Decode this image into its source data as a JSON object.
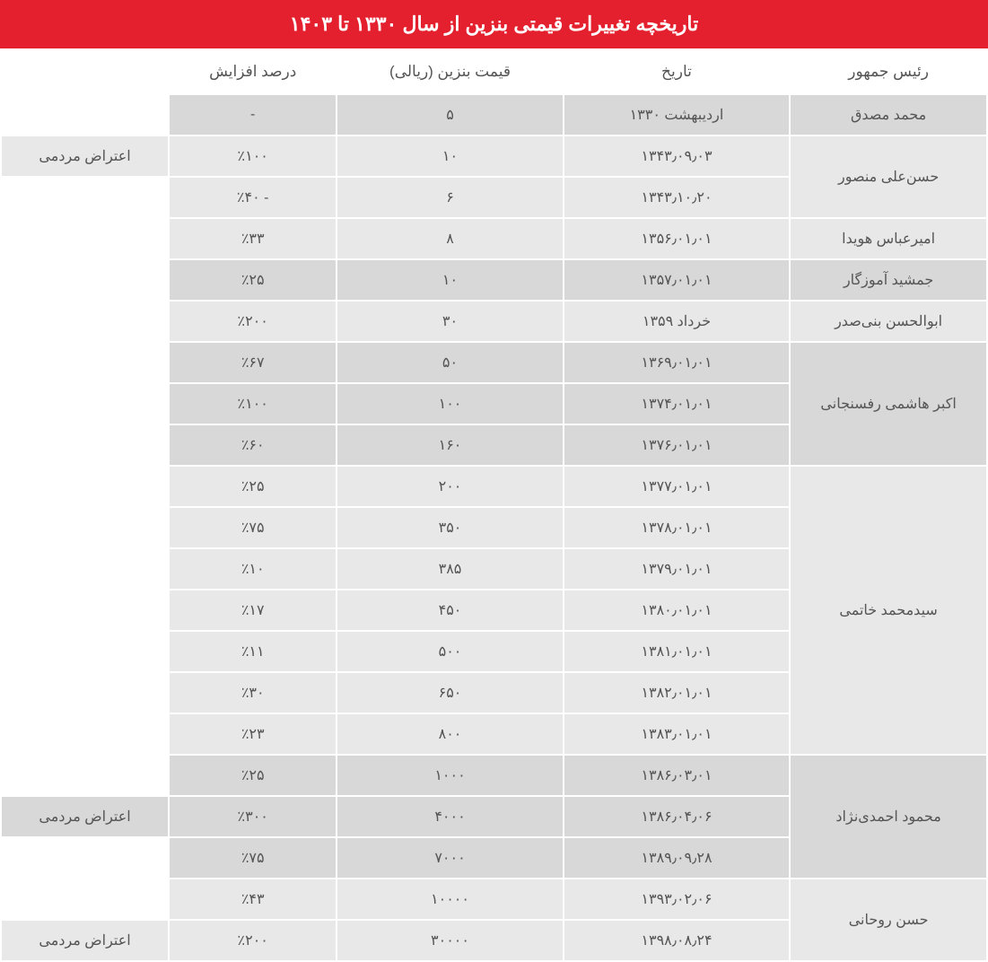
{
  "title": "تاریخچه تغییرات قیمتی بنزین از سال ۱۳۳۰ تا ۱۴۰۳",
  "columns": {
    "president": "رئیس جمهور",
    "date": "تاریخ",
    "price": "قیمت بنزین (ریالی)",
    "pct": "درصد افزایش",
    "note": ""
  },
  "protest_label": "اعتراض مردمی",
  "groups": [
    {
      "president": "محمد مصدق",
      "shade": "a",
      "rows": [
        {
          "date": "اردیبهشت ۱۳۳۰",
          "price": "۵",
          "pct": "-",
          "note": ""
        }
      ]
    },
    {
      "president": "حسن‌علی منصور",
      "shade": "b",
      "rows": [
        {
          "date": "۱۳۴۳٫۰۹٫۰۳",
          "price": "۱۰",
          "pct": "٪۱۰۰",
          "note": "اعتراض مردمی"
        },
        {
          "date": "۱۳۴۳٫۱۰٫۲۰",
          "price": "۶",
          "pct": "- ٪۴۰",
          "note": ""
        }
      ]
    },
    {
      "president": "امیرعباس هویدا",
      "shade": "b",
      "rows": [
        {
          "date": "۱۳۵۶٫۰۱٫۰۱",
          "price": "۸",
          "pct": "٪۳۳",
          "note": ""
        }
      ]
    },
    {
      "president": "جمشید آموزگار",
      "shade": "a",
      "rows": [
        {
          "date": "۱۳۵۷٫۰۱٫۰۱",
          "price": "۱۰",
          "pct": "٪۲۵",
          "note": ""
        }
      ]
    },
    {
      "president": "ابوالحسن بنی‌صدر",
      "shade": "b",
      "rows": [
        {
          "date": "خرداد ۱۳۵۹",
          "price": "۳۰",
          "pct": "٪۲۰۰",
          "note": ""
        }
      ]
    },
    {
      "president": "اکبر هاشمی رفسنجانی",
      "shade": "a",
      "rows": [
        {
          "date": "۱۳۶۹٫۰۱٫۰۱",
          "price": "۵۰",
          "pct": "٪۶۷",
          "note": ""
        },
        {
          "date": "۱۳۷۴٫۰۱٫۰۱",
          "price": "۱۰۰",
          "pct": "٪۱۰۰",
          "note": ""
        },
        {
          "date": "۱۳۷۶٫۰۱٫۰۱",
          "price": "۱۶۰",
          "pct": "٪۶۰",
          "note": ""
        }
      ]
    },
    {
      "president": "سیدمحمد خاتمی",
      "shade": "b",
      "rows": [
        {
          "date": "۱۳۷۷٫۰۱٫۰۱",
          "price": "۲۰۰",
          "pct": "٪۲۵",
          "note": ""
        },
        {
          "date": "۱۳۷۸٫۰۱٫۰۱",
          "price": "۳۵۰",
          "pct": "٪۷۵",
          "note": ""
        },
        {
          "date": "۱۳۷۹٫۰۱٫۰۱",
          "price": "۳۸۵",
          "pct": "٪۱۰",
          "note": ""
        },
        {
          "date": "۱۳۸۰٫۰۱٫۰۱",
          "price": "۴۵۰",
          "pct": "٪۱۷",
          "note": ""
        },
        {
          "date": "۱۳۸۱٫۰۱٫۰۱",
          "price": "۵۰۰",
          "pct": "٪۱۱",
          "note": ""
        },
        {
          "date": "۱۳۸۲٫۰۱٫۰۱",
          "price": "۶۵۰",
          "pct": "٪۳۰",
          "note": ""
        },
        {
          "date": "۱۳۸۳٫۰۱٫۰۱",
          "price": "۸۰۰",
          "pct": "٪۲۳",
          "note": ""
        }
      ]
    },
    {
      "president": "محمود احمدی‌نژاد",
      "shade": "a",
      "rows": [
        {
          "date": "۱۳۸۶٫۰۳٫۰۱",
          "price": "۱۰۰۰",
          "pct": "٪۲۵",
          "note": ""
        },
        {
          "date": "۱۳۸۶٫۰۴٫۰۶",
          "price": "۴۰۰۰",
          "pct": "٪۳۰۰",
          "note": "اعتراض مردمی"
        },
        {
          "date": "۱۳۸۹٫۰۹٫۲۸",
          "price": "۷۰۰۰",
          "pct": "٪۷۵",
          "note": ""
        }
      ]
    },
    {
      "president": "حسن روحانی",
      "shade": "b",
      "rows": [
        {
          "date": "۱۳۹۳٫۰۲٫۰۶",
          "price": "۱۰۰۰۰",
          "pct": "٪۴۳",
          "note": ""
        },
        {
          "date": "۱۳۹۸٫۰۸٫۲۴",
          "price": "۳۰۰۰۰",
          "pct": "٪۲۰۰",
          "note": "اعتراض مردمی"
        }
      ]
    }
  ]
}
